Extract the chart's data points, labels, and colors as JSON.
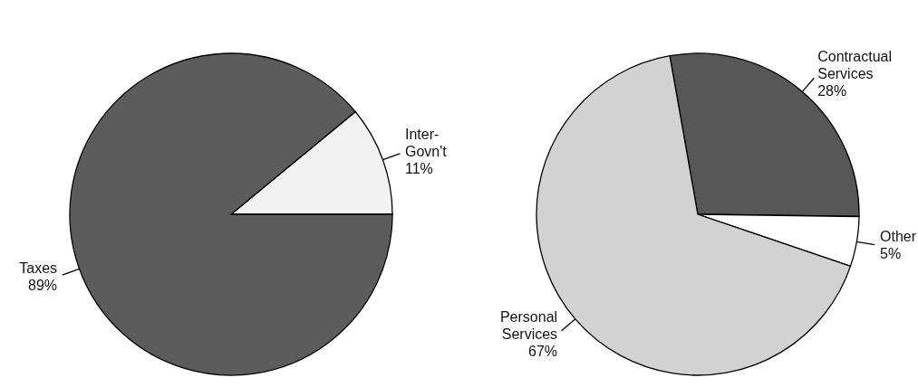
{
  "chart_data": [
    {
      "type": "pie",
      "categories": [
        "Inter-Govn't",
        "Taxes"
      ],
      "values": [
        11,
        89
      ],
      "value_labels": [
        "11%",
        "89%"
      ],
      "colors": [
        "#f2f2f2",
        "#5c5c5c"
      ],
      "legend": false
    },
    {
      "type": "pie",
      "categories": [
        "Contractual Services",
        "Other",
        "Personal Services"
      ],
      "values": [
        28,
        5,
        67
      ],
      "value_labels": [
        "28%",
        "5%",
        "67%"
      ],
      "colors": [
        "#575757",
        "#ffffff",
        "#d2d2d2"
      ],
      "legend": false
    }
  ]
}
